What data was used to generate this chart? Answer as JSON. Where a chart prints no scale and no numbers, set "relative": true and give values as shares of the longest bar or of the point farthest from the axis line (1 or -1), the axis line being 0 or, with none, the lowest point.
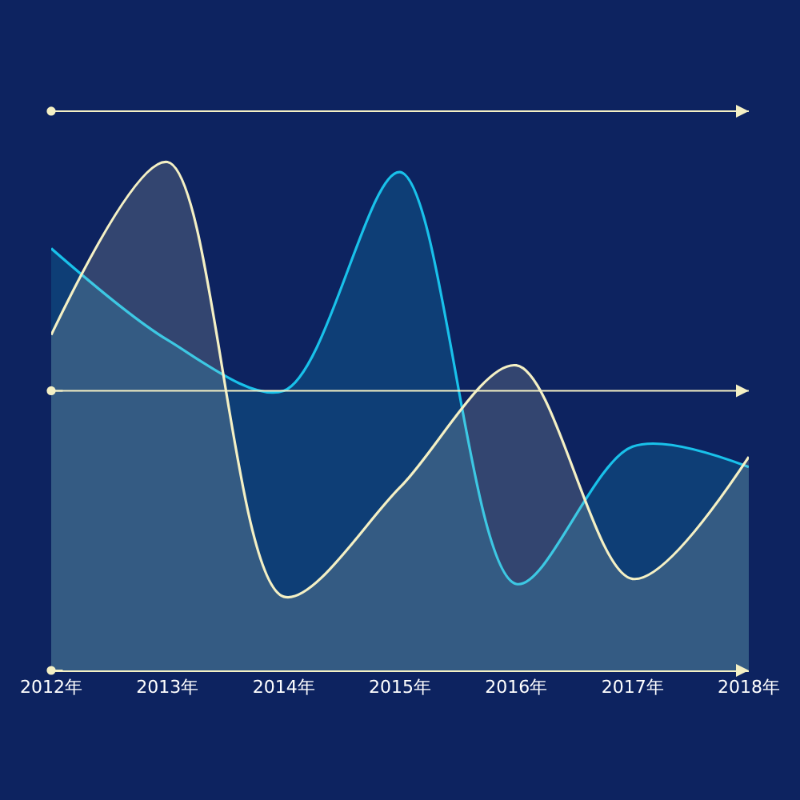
{
  "chart_data": {
    "type": "area",
    "relative": true,
    "grid": false,
    "legend": false,
    "categories": [
      "2012年",
      "2013年",
      "2014年",
      "2015年",
      "2016年",
      "2017年",
      "2018年"
    ],
    "series": [
      {
        "color": "#19c1ea",
        "values": [
          0.83,
          0.65,
          0.55,
          0.98,
          0.17,
          0.44,
          0.4
        ]
      },
      {
        "color": "#f4f0c4",
        "values": [
          0.66,
          1,
          0.145,
          0.36,
          0.6,
          0.18,
          0.42
        ]
      }
    ],
    "ref_lines": [
      {
        "axis": "y",
        "value": 0.55,
        "color": "#f4f0c4"
      },
      {
        "axis": "y",
        "value": 1.1,
        "color": "#f4f0c4"
      }
    ]
  }
}
